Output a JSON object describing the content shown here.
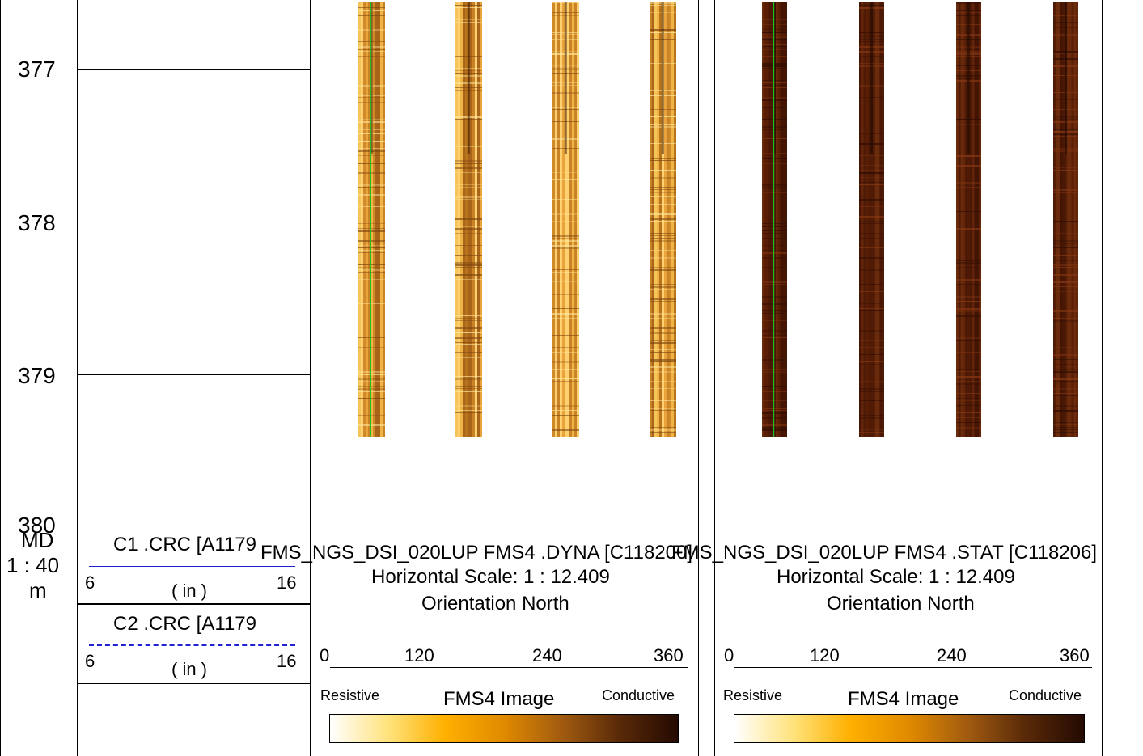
{
  "depth_track": {
    "ticks": [
      "377",
      "378",
      "379",
      "380"
    ],
    "header": {
      "line1": "MD",
      "line2": "1 : 40",
      "line3": "m"
    }
  },
  "curves": [
    {
      "name": "C1 .CRC [A1179",
      "min": "6",
      "max": "16",
      "unit": "( in )",
      "color": "#1f1fd6",
      "style": "solid"
    },
    {
      "name": "C2 .CRC [A1179",
      "min": "6",
      "max": "16",
      "unit": "( in )",
      "color": "#1f1fd6",
      "style": "dashed"
    }
  ],
  "image_tracks": [
    {
      "title": "FMS_NGS_DSI_020LUP FMS4 .DYNA [C118200]",
      "scale": "Horizontal Scale: 1 : 12.409",
      "orientation": "Orientation North",
      "azimuth_ticks": [
        "0",
        "120",
        "240",
        "360"
      ],
      "left_label": "Resistive",
      "center_label": "FMS4 Image",
      "right_label": "Conductive",
      "palette": "dynamic"
    },
    {
      "title": "FMS_NGS_DSI_020LUP FMS4 .STAT [C118206]",
      "scale": "Horizontal Scale: 1 : 12.409",
      "orientation": "Orientation North",
      "azimuth_ticks": [
        "0",
        "120",
        "240",
        "360"
      ],
      "left_label": "Resistive",
      "center_label": "FMS4 Image",
      "right_label": "Conductive",
      "palette": "static"
    }
  ],
  "colors": {
    "colorbar": [
      "#ffffff",
      "#ffe27a",
      "#ffb000",
      "#e08a00",
      "#a05a10",
      "#5a2a08",
      "#240a02"
    ],
    "orientation_line": "#20c020"
  },
  "chart_data": {
    "type": "heatmap",
    "title": "",
    "depth_unit": "m",
    "depth_range": [
      376.6,
      380
    ],
    "image_interval": [
      376.6,
      379.4
    ],
    "pads": 4,
    "azimuth_range": [
      0,
      360
    ],
    "tracks": [
      "FMS4 .DYNA",
      "FMS4 .STAT"
    ]
  }
}
